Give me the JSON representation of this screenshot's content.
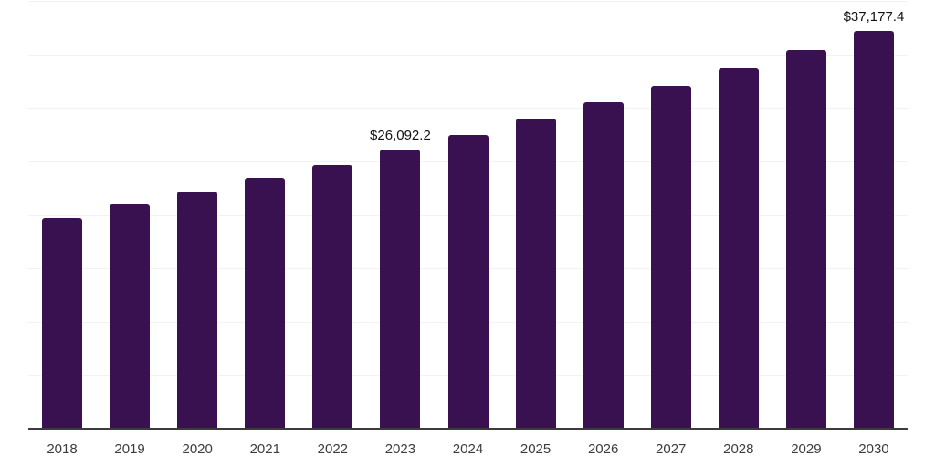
{
  "chart_data": {
    "type": "bar",
    "title": "",
    "xlabel": "",
    "ylabel": "",
    "categories": [
      "2018",
      "2019",
      "2020",
      "2021",
      "2022",
      "2023",
      "2024",
      "2025",
      "2026",
      "2027",
      "2028",
      "2029",
      "2030"
    ],
    "values": [
      19700,
      21000,
      22200,
      23450,
      24650,
      26092.2,
      27500,
      29000,
      30550,
      32070,
      33690,
      35400,
      37177.4
    ],
    "data_labels": [
      {
        "index": 5,
        "category": "2023",
        "text": "$26,092.2"
      },
      {
        "index": 12,
        "category": "2030",
        "text": "$37,177.4"
      }
    ],
    "ylim": [
      0,
      40000
    ],
    "gridline_interval": 5000,
    "grid": "horizontal-only",
    "legend": "none",
    "y_tick_labels_visible": false,
    "bar_color": "#3A1150",
    "gridline_color": "#F2F2F2",
    "axis_line_color": "#3C3C3C",
    "tick_label_color": "#3D3D3D",
    "value_label_color": "#121212"
  }
}
